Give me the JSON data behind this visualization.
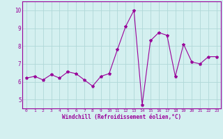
{
  "x": [
    0,
    1,
    2,
    3,
    4,
    5,
    6,
    7,
    8,
    9,
    10,
    11,
    12,
    13,
    14,
    15,
    16,
    17,
    18,
    19,
    20,
    21,
    22,
    23
  ],
  "y": [
    6.2,
    6.3,
    6.1,
    6.4,
    6.2,
    6.55,
    6.45,
    6.1,
    5.75,
    6.3,
    6.45,
    7.8,
    9.1,
    10.0,
    4.7,
    8.3,
    8.75,
    8.6,
    6.3,
    8.1,
    7.1,
    7.0,
    7.4,
    7.4
  ],
  "line_color": "#990099",
  "marker": "*",
  "marker_color": "#990099",
  "bg_color": "#d4f0f0",
  "grid_color": "#b0d8d8",
  "xlabel": "Windchill (Refroidissement éolien,°C)",
  "xlabel_color": "#990099",
  "tick_color": "#990099",
  "ylim": [
    4.5,
    10.5
  ],
  "xlim": [
    -0.5,
    23.5
  ],
  "yticks": [
    5,
    6,
    7,
    8,
    9,
    10
  ],
  "xticks": [
    0,
    1,
    2,
    3,
    4,
    5,
    6,
    7,
    8,
    9,
    10,
    11,
    12,
    13,
    14,
    15,
    16,
    17,
    18,
    19,
    20,
    21,
    22,
    23
  ],
  "spine_color": "#990099",
  "figsize": [
    3.2,
    2.0
  ],
  "dpi": 100
}
